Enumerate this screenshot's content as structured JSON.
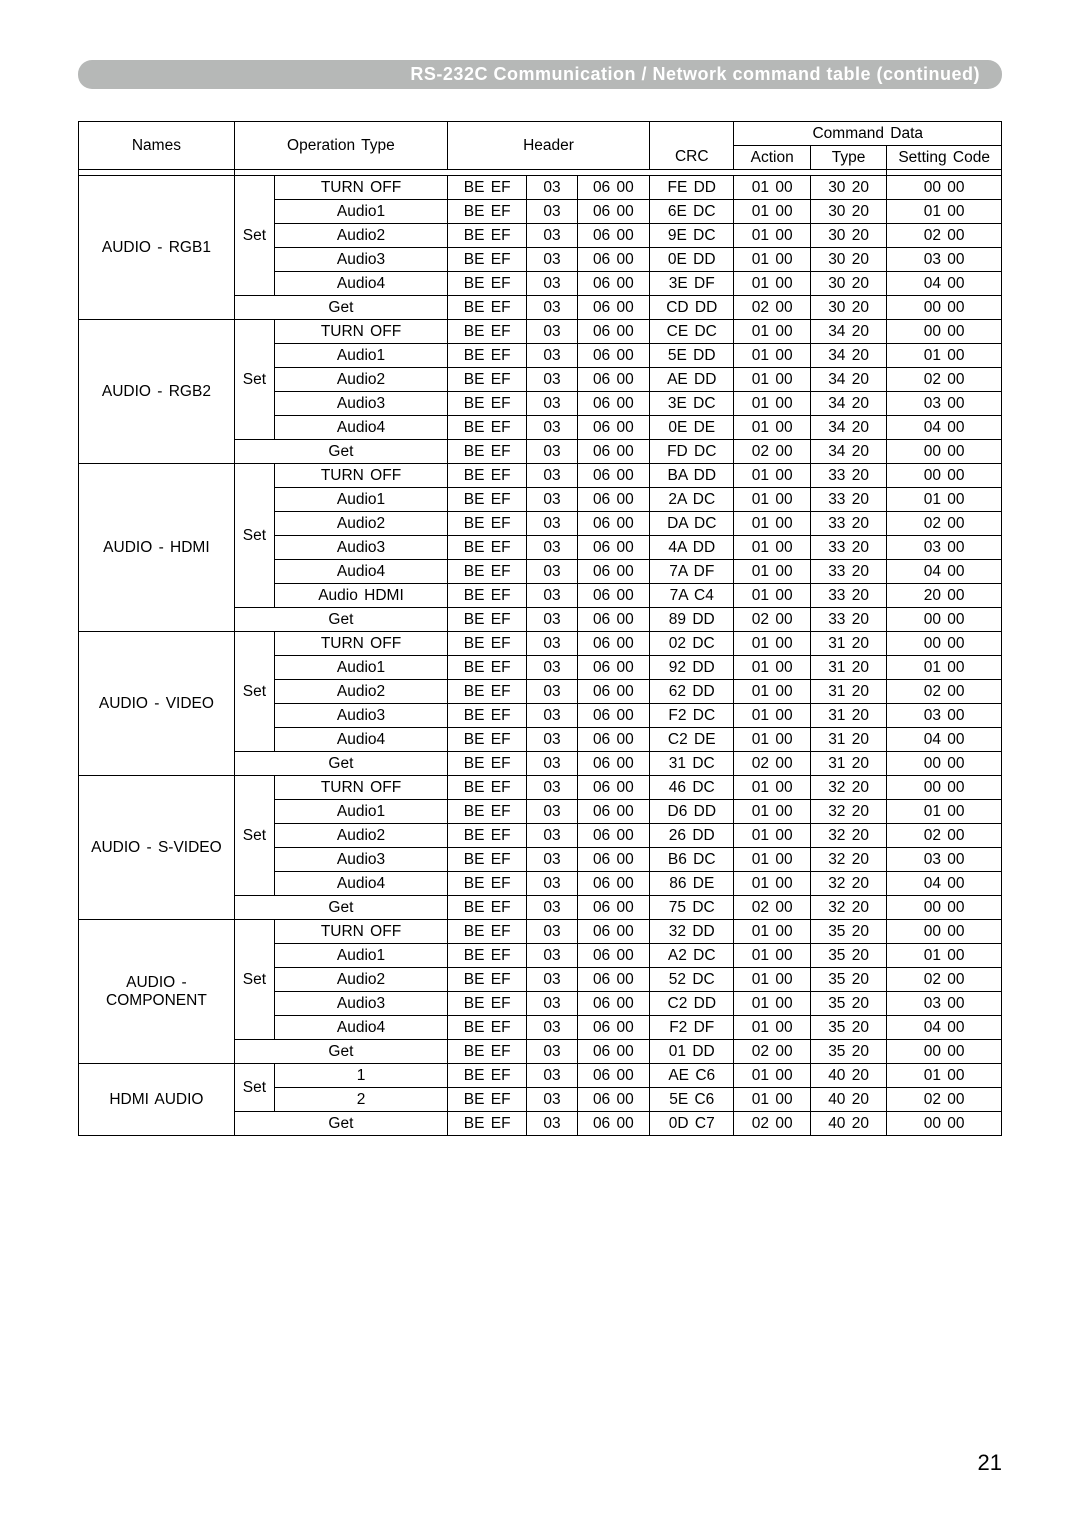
{
  "title": "RS-232C Communication / Network command table (continued)",
  "page_number": "21",
  "header": {
    "names": "Names",
    "operation_type": "Operation Type",
    "header": "Header",
    "crc": "CRC",
    "command_data": "Command Data",
    "action": "Action",
    "type": "Type",
    "setting_code": "Setting Code"
  },
  "groups": [
    {
      "name": "AUDIO - RGB1",
      "set_label": "Set",
      "set_rows": [
        {
          "op": "TURN OFF",
          "h1": "BE  EF",
          "h2": "03",
          "h3": "06  00",
          "crc": "FE  DD",
          "act": "01  00",
          "type": "30  20",
          "sc": "00  00"
        },
        {
          "op": "Audio1",
          "h1": "BE  EF",
          "h2": "03",
          "h3": "06  00",
          "crc": "6E  DC",
          "act": "01  00",
          "type": "30  20",
          "sc": "01  00"
        },
        {
          "op": "Audio2",
          "h1": "BE  EF",
          "h2": "03",
          "h3": "06  00",
          "crc": "9E  DC",
          "act": "01  00",
          "type": "30  20",
          "sc": "02  00"
        },
        {
          "op": "Audio3",
          "h1": "BE  EF",
          "h2": "03",
          "h3": "06  00",
          "crc": "0E  DD",
          "act": "01  00",
          "type": "30  20",
          "sc": "03  00"
        },
        {
          "op": "Audio4",
          "h1": "BE  EF",
          "h2": "03",
          "h3": "06  00",
          "crc": "3E  DF",
          "act": "01  00",
          "type": "30  20",
          "sc": "04  00"
        }
      ],
      "get_row": {
        "op": "Get",
        "h1": "BE  EF",
        "h2": "03",
        "h3": "06  00",
        "crc": "CD  DD",
        "act": "02  00",
        "type": "30  20",
        "sc": "00  00"
      }
    },
    {
      "name": "AUDIO - RGB2",
      "set_label": "Set",
      "set_rows": [
        {
          "op": "TURN OFF",
          "h1": "BE  EF",
          "h2": "03",
          "h3": "06  00",
          "crc": "CE  DC",
          "act": "01  00",
          "type": "34  20",
          "sc": "00  00"
        },
        {
          "op": "Audio1",
          "h1": "BE  EF",
          "h2": "03",
          "h3": "06  00",
          "crc": "5E  DD",
          "act": "01  00",
          "type": "34  20",
          "sc": "01  00"
        },
        {
          "op": "Audio2",
          "h1": "BE  EF",
          "h2": "03",
          "h3": "06  00",
          "crc": "AE  DD",
          "act": "01  00",
          "type": "34  20",
          "sc": "02  00"
        },
        {
          "op": "Audio3",
          "h1": "BE  EF",
          "h2": "03",
          "h3": "06  00",
          "crc": "3E  DC",
          "act": "01  00",
          "type": "34  20",
          "sc": "03  00"
        },
        {
          "op": "Audio4",
          "h1": "BE  EF",
          "h2": "03",
          "h3": "06  00",
          "crc": "0E  DE",
          "act": "01  00",
          "type": "34  20",
          "sc": "04  00"
        }
      ],
      "get_row": {
        "op": "Get",
        "h1": "BE  EF",
        "h2": "03",
        "h3": "06  00",
        "crc": "FD  DC",
        "act": "02  00",
        "type": "34  20",
        "sc": "00  00"
      }
    },
    {
      "name": "AUDIO - HDMI",
      "set_label": "Set",
      "set_rows": [
        {
          "op": "TURN OFF",
          "h1": "BE  EF",
          "h2": "03",
          "h3": "06  00",
          "crc": "BA   DD",
          "act": "01  00",
          "type": "33  20",
          "sc": "00  00"
        },
        {
          "op": "Audio1",
          "h1": "BE  EF",
          "h2": "03",
          "h3": "06  00",
          "crc": "2A   DC",
          "act": "01  00",
          "type": "33  20",
          "sc": "01  00"
        },
        {
          "op": "Audio2",
          "h1": "BE  EF",
          "h2": "03",
          "h3": "06  00",
          "crc": "DA   DC",
          "act": "01  00",
          "type": "33  20",
          "sc": "02  00"
        },
        {
          "op": "Audio3",
          "h1": "BE  EF",
          "h2": "03",
          "h3": "06  00",
          "crc": "4A   DD",
          "act": "01  00",
          "type": "33  20",
          "sc": "03  00"
        },
        {
          "op": "Audio4",
          "h1": "BE  EF",
          "h2": "03",
          "h3": "06  00",
          "crc": "7A   DF",
          "act": "01  00",
          "type": "33  20",
          "sc": "04  00"
        },
        {
          "op": "Audio HDMI",
          "h1": "BE  EF",
          "h2": "03",
          "h3": "06  00",
          "crc": "7A   C4",
          "act": "01  00",
          "type": "33  20",
          "sc": "20  00"
        }
      ],
      "get_row": {
        "op": "Get",
        "h1": "BE  EF",
        "h2": "03",
        "h3": "06  00",
        "crc": "89   DD",
        "act": "02  00",
        "type": "33  20",
        "sc": "00  00"
      }
    },
    {
      "name": "AUDIO - VIDEO",
      "set_label": "Set",
      "set_rows": [
        {
          "op": "TURN OFF",
          "h1": "BE  EF",
          "h2": "03",
          "h3": "06  00",
          "crc": "02  DC",
          "act": "01  00",
          "type": "31  20",
          "sc": "00  00"
        },
        {
          "op": "Audio1",
          "h1": "BE  EF",
          "h2": "03",
          "h3": "06  00",
          "crc": "92  DD",
          "act": "01  00",
          "type": "31  20",
          "sc": "01  00"
        },
        {
          "op": "Audio2",
          "h1": "BE  EF",
          "h2": "03",
          "h3": "06  00",
          "crc": "62  DD",
          "act": "01  00",
          "type": "31  20",
          "sc": "02  00"
        },
        {
          "op": "Audio3",
          "h1": "BE  EF",
          "h2": "03",
          "h3": "06  00",
          "crc": "F2  DC",
          "act": "01  00",
          "type": "31  20",
          "sc": "03  00"
        },
        {
          "op": "Audio4",
          "h1": "BE  EF",
          "h2": "03",
          "h3": "06  00",
          "crc": "C2  DE",
          "act": "01  00",
          "type": "31  20",
          "sc": "04  00"
        }
      ],
      "get_row": {
        "op": "Get",
        "h1": "BE  EF",
        "h2": "03",
        "h3": "06  00",
        "crc": "31  DC",
        "act": "02  00",
        "type": "31  20",
        "sc": "00  00"
      }
    },
    {
      "name": "AUDIO - S-VIDEO",
      "set_label": "Set",
      "set_rows": [
        {
          "op": "TURN OFF",
          "h1": "BE  EF",
          "h2": "03",
          "h3": "06  00",
          "crc": "46  DC",
          "act": "01  00",
          "type": "32  20",
          "sc": "00  00"
        },
        {
          "op": "Audio1",
          "h1": "BE  EF",
          "h2": "03",
          "h3": "06  00",
          "crc": "D6  DD",
          "act": "01  00",
          "type": "32  20",
          "sc": "01  00"
        },
        {
          "op": "Audio2",
          "h1": "BE  EF",
          "h2": "03",
          "h3": "06  00",
          "crc": "26  DD",
          "act": "01  00",
          "type": "32  20",
          "sc": "02  00"
        },
        {
          "op": "Audio3",
          "h1": "BE  EF",
          "h2": "03",
          "h3": "06  00",
          "crc": "B6  DC",
          "act": "01  00",
          "type": "32  20",
          "sc": "03  00"
        },
        {
          "op": "Audio4",
          "h1": "BE  EF",
          "h2": "03",
          "h3": "06  00",
          "crc": "86  DE",
          "act": "01  00",
          "type": "32  20",
          "sc": "04  00"
        }
      ],
      "get_row": {
        "op": "Get",
        "h1": "BE  EF",
        "h2": "03",
        "h3": "06  00",
        "crc": "75  DC",
        "act": "02  00",
        "type": "32  20",
        "sc": "00  00"
      }
    },
    {
      "name": "AUDIO - COMPONENT",
      "set_label": "Set",
      "set_rows": [
        {
          "op": "TURN OFF",
          "h1": "BE  EF",
          "h2": "03",
          "h3": "06  00",
          "crc": "32  DD",
          "act": "01  00",
          "type": "35  20",
          "sc": "00  00"
        },
        {
          "op": "Audio1",
          "h1": "BE  EF",
          "h2": "03",
          "h3": "06  00",
          "crc": "A2  DC",
          "act": "01  00",
          "type": "35  20",
          "sc": "01  00"
        },
        {
          "op": "Audio2",
          "h1": "BE  EF",
          "h2": "03",
          "h3": "06  00",
          "crc": "52  DC",
          "act": "01  00",
          "type": "35  20",
          "sc": "02  00"
        },
        {
          "op": "Audio3",
          "h1": "BE  EF",
          "h2": "03",
          "h3": "06  00",
          "crc": "C2  DD",
          "act": "01  00",
          "type": "35  20",
          "sc": "03  00"
        },
        {
          "op": "Audio4",
          "h1": "BE  EF",
          "h2": "03",
          "h3": "06  00",
          "crc": "F2  DF",
          "act": "01  00",
          "type": "35  20",
          "sc": "04  00"
        }
      ],
      "get_row": {
        "op": "Get",
        "h1": "BE  EF",
        "h2": "03",
        "h3": "06  00",
        "crc": "01  DD",
        "act": "02  00",
        "type": "35  20",
        "sc": "00  00"
      }
    },
    {
      "name": "HDMI AUDIO",
      "set_label": "Set",
      "set_rows": [
        {
          "op": "1",
          "h1": "BE  EF",
          "h2": "03",
          "h3": "06  00",
          "crc": "AE  C6",
          "act": "01  00",
          "type": "40  20",
          "sc": "01  00"
        },
        {
          "op": "2",
          "h1": "BE  EF",
          "h2": "03",
          "h3": "06  00",
          "crc": "5E  C6",
          "act": "01  00",
          "type": "40  20",
          "sc": "02  00"
        }
      ],
      "get_row": {
        "op": "Get",
        "h1": "BE  EF",
        "h2": "03",
        "h3": "06  00",
        "crc": "0D  C7",
        "act": "02  00",
        "type": "40  20",
        "sc": "00  00"
      }
    }
  ]
}
